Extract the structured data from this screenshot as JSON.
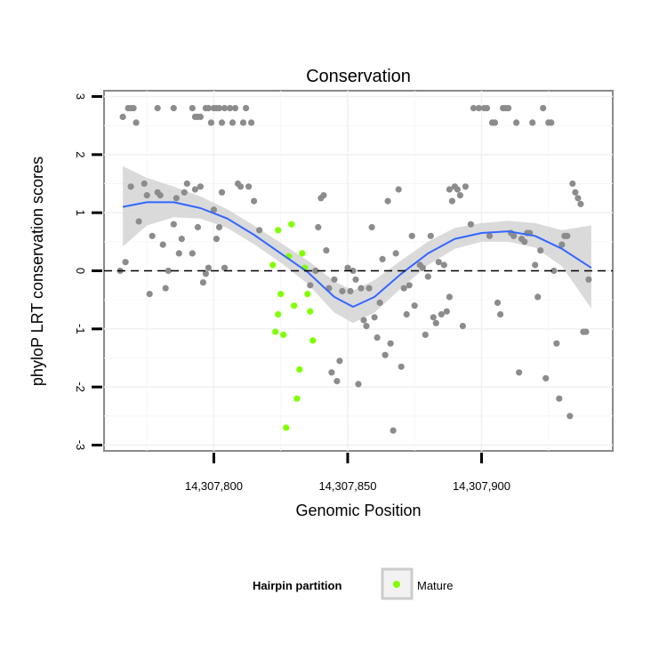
{
  "chart_data": {
    "type": "scatter",
    "title": "Conservation",
    "xlabel": "Genomic Position",
    "ylabel": "phyloP LRT conservation scores",
    "xlim": [
      14307759,
      14307949
    ],
    "ylim": [
      -3.1,
      3.1
    ],
    "x_ticks": [
      14307800,
      14307850,
      14307900
    ],
    "x_tick_labels": [
      "14,307,800",
      "14,307,850",
      "14,307,900"
    ],
    "y_ticks": [
      3,
      2,
      1,
      0,
      -1,
      -2,
      -3
    ],
    "y_tick_labels": [
      "3",
      "2",
      "1",
      "0",
      "-1",
      "-2",
      "-3"
    ],
    "reference_line": {
      "y": 0,
      "style": "dashed"
    },
    "grid": true,
    "legend": {
      "title": "Hairpin partition",
      "placement": "bottom",
      "entries": [
        "Mature"
      ]
    },
    "colors": {
      "other": "#8c8c8c",
      "mature": "#7fff00",
      "smooth": "#3366ff",
      "band": "#d3d3d3"
    },
    "series": [
      {
        "key": "other",
        "points": [
          [
            14307766,
            2.65
          ],
          [
            14307768,
            2.8
          ],
          [
            14307769,
            2.8
          ],
          [
            14307770,
            2.8
          ],
          [
            14307771,
            2.55
          ],
          [
            14307779,
            2.8
          ],
          [
            14307785,
            2.8
          ],
          [
            14307792,
            2.8
          ],
          [
            14307793,
            2.65
          ],
          [
            14307794,
            2.65
          ],
          [
            14307795,
            2.65
          ],
          [
            14307797,
            2.8
          ],
          [
            14307798,
            2.8
          ],
          [
            14307799,
            2.55
          ],
          [
            14307800,
            2.8
          ],
          [
            14307801,
            2.8
          ],
          [
            14307802,
            2.8
          ],
          [
            14307803,
            2.55
          ],
          [
            14307804,
            2.8
          ],
          [
            14307806,
            2.8
          ],
          [
            14307807,
            2.55
          ],
          [
            14307808,
            2.8
          ],
          [
            14307811,
            2.55
          ],
          [
            14307812,
            2.8
          ],
          [
            14307814,
            2.55
          ],
          [
            14307765,
            0.0
          ],
          [
            14307767,
            0.15
          ],
          [
            14307769,
            1.45
          ],
          [
            14307772,
            0.85
          ],
          [
            14307774,
            1.5
          ],
          [
            14307775,
            1.3
          ],
          [
            14307776,
            -0.4
          ],
          [
            14307777,
            0.6
          ],
          [
            14307779,
            1.35
          ],
          [
            14307780,
            1.3
          ],
          [
            14307781,
            0.45
          ],
          [
            14307782,
            -0.3
          ],
          [
            14307783,
            0.0
          ],
          [
            14307785,
            0.8
          ],
          [
            14307786,
            1.25
          ],
          [
            14307787,
            0.3
          ],
          [
            14307788,
            0.55
          ],
          [
            14307789,
            1.35
          ],
          [
            14307790,
            1.5
          ],
          [
            14307792,
            0.3
          ],
          [
            14307793,
            1.4
          ],
          [
            14307794,
            0.75
          ],
          [
            14307795,
            1.45
          ],
          [
            14307796,
            -0.2
          ],
          [
            14307797,
            -0.05
          ],
          [
            14307798,
            0.05
          ],
          [
            14307800,
            1.05
          ],
          [
            14307801,
            0.55
          ],
          [
            14307802,
            0.75
          ],
          [
            14307803,
            1.35
          ],
          [
            14307804,
            0.05
          ],
          [
            14307809,
            1.5
          ],
          [
            14307810,
            1.45
          ],
          [
            14307813,
            1.45
          ],
          [
            14307815,
            1.2
          ],
          [
            14307817,
            0.7
          ],
          [
            14307836,
            -0.25
          ],
          [
            14307838,
            0.0
          ],
          [
            14307839,
            0.75
          ],
          [
            14307840,
            1.25
          ],
          [
            14307841,
            1.3
          ],
          [
            14307842,
            0.35
          ],
          [
            14307843,
            -0.3
          ],
          [
            14307844,
            -1.75
          ],
          [
            14307845,
            -0.15
          ],
          [
            14307846,
            -1.9
          ],
          [
            14307847,
            -1.55
          ],
          [
            14307848,
            -0.35
          ],
          [
            14307850,
            0.05
          ],
          [
            14307851,
            -0.35
          ],
          [
            14307852,
            0.0
          ],
          [
            14307853,
            -0.15
          ],
          [
            14307854,
            -1.95
          ],
          [
            14307855,
            -0.3
          ],
          [
            14307856,
            -0.85
          ],
          [
            14307857,
            -0.95
          ],
          [
            14307858,
            -0.3
          ],
          [
            14307859,
            0.75
          ],
          [
            14307860,
            -0.8
          ],
          [
            14307861,
            -1.15
          ],
          [
            14307862,
            -0.55
          ],
          [
            14307863,
            0.2
          ],
          [
            14307864,
            -1.45
          ],
          [
            14307865,
            1.2
          ],
          [
            14307866,
            -1.25
          ],
          [
            14307867,
            -2.75
          ],
          [
            14307868,
            0.3
          ],
          [
            14307869,
            1.4
          ],
          [
            14307870,
            -1.65
          ],
          [
            14307871,
            -0.3
          ],
          [
            14307872,
            -0.75
          ],
          [
            14307873,
            -0.25
          ],
          [
            14307874,
            0.6
          ],
          [
            14307875,
            -0.6
          ],
          [
            14307877,
            0.1
          ],
          [
            14307878,
            0.05
          ],
          [
            14307879,
            -1.1
          ],
          [
            14307880,
            -0.1
          ],
          [
            14307881,
            0.6
          ],
          [
            14307882,
            -0.8
          ],
          [
            14307883,
            -0.9
          ],
          [
            14307884,
            0.15
          ],
          [
            14307885,
            -0.75
          ],
          [
            14307886,
            0.1
          ],
          [
            14307887,
            -0.7
          ],
          [
            14307888,
            1.4
          ],
          [
            14307889,
            1.2
          ],
          [
            14307890,
            1.45
          ],
          [
            14307891,
            1.4
          ],
          [
            14307892,
            1.3
          ],
          [
            14307893,
            -0.95
          ],
          [
            14307894,
            1.45
          ],
          [
            14307888,
            -0.45
          ],
          [
            14307896,
            0.8
          ],
          [
            14307897,
            2.8
          ],
          [
            14307899,
            2.8
          ],
          [
            14307901,
            2.8
          ],
          [
            14307902,
            2.8
          ],
          [
            14307903,
            0.6
          ],
          [
            14307904,
            2.55
          ],
          [
            14307905,
            2.55
          ],
          [
            14307906,
            -0.55
          ],
          [
            14307907,
            -0.75
          ],
          [
            14307908,
            2.8
          ],
          [
            14307909,
            2.8
          ],
          [
            14307910,
            2.8
          ],
          [
            14307911,
            0.65
          ],
          [
            14307912,
            0.6
          ],
          [
            14307913,
            2.55
          ],
          [
            14307914,
            -1.75
          ],
          [
            14307915,
            0.55
          ],
          [
            14307916,
            0.5
          ],
          [
            14307917,
            0.65
          ],
          [
            14307918,
            0.65
          ],
          [
            14307919,
            2.55
          ],
          [
            14307920,
            0.1
          ],
          [
            14307921,
            -0.45
          ],
          [
            14307922,
            0.35
          ],
          [
            14307923,
            2.8
          ],
          [
            14307924,
            -1.85
          ],
          [
            14307925,
            2.55
          ],
          [
            14307926,
            2.55
          ],
          [
            14307927,
            0.0
          ],
          [
            14307928,
            -1.25
          ],
          [
            14307929,
            -2.2
          ],
          [
            14307930,
            0.45
          ],
          [
            14307931,
            0.6
          ],
          [
            14307932,
            0.6
          ],
          [
            14307933,
            -2.5
          ],
          [
            14307934,
            1.5
          ],
          [
            14307935,
            1.35
          ],
          [
            14307936,
            1.25
          ],
          [
            14307937,
            1.15
          ],
          [
            14307938,
            -1.05
          ],
          [
            14307939,
            -1.05
          ],
          [
            14307940,
            -0.15
          ]
        ]
      },
      {
        "key": "mature",
        "name": "Mature",
        "points": [
          [
            14307822,
            0.1
          ],
          [
            14307824,
            0.7
          ],
          [
            14307823,
            -1.05
          ],
          [
            14307824,
            -0.75
          ],
          [
            14307825,
            -0.4
          ],
          [
            14307826,
            -1.1
          ],
          [
            14307828,
            0.25
          ],
          [
            14307829,
            0.8
          ],
          [
            14307830,
            -0.6
          ],
          [
            14307831,
            -2.2
          ],
          [
            14307832,
            -1.7
          ],
          [
            14307833,
            0.3
          ],
          [
            14307834,
            0.05
          ],
          [
            14307835,
            -0.4
          ],
          [
            14307836,
            -0.7
          ],
          [
            14307837,
            -1.2
          ],
          [
            14307827,
            -2.7
          ]
        ]
      }
    ],
    "smooth_curve": {
      "method": "loess",
      "x": [
        14307766,
        14307775,
        14307785,
        14307795,
        14307805,
        14307815,
        14307825,
        14307835,
        14307845,
        14307852,
        14307860,
        14307870,
        14307880,
        14307890,
        14307900,
        14307910,
        14307920,
        14307930,
        14307941
      ],
      "y": [
        1.1,
        1.18,
        1.18,
        1.08,
        0.9,
        0.62,
        0.3,
        -0.02,
        -0.45,
        -0.62,
        -0.45,
        -0.05,
        0.3,
        0.55,
        0.65,
        0.68,
        0.6,
        0.38,
        0.05
      ],
      "ci_low": [
        0.42,
        0.78,
        0.92,
        0.9,
        0.74,
        0.46,
        0.14,
        -0.22,
        -0.72,
        -0.9,
        -0.72,
        -0.3,
        0.1,
        0.38,
        0.5,
        0.5,
        0.4,
        0.08,
        -0.65
      ],
      "ci_high": [
        1.8,
        1.6,
        1.45,
        1.28,
        1.06,
        0.78,
        0.48,
        0.18,
        -0.18,
        -0.34,
        -0.16,
        0.18,
        0.5,
        0.74,
        0.82,
        0.86,
        0.82,
        0.7,
        0.78
      ]
    }
  }
}
